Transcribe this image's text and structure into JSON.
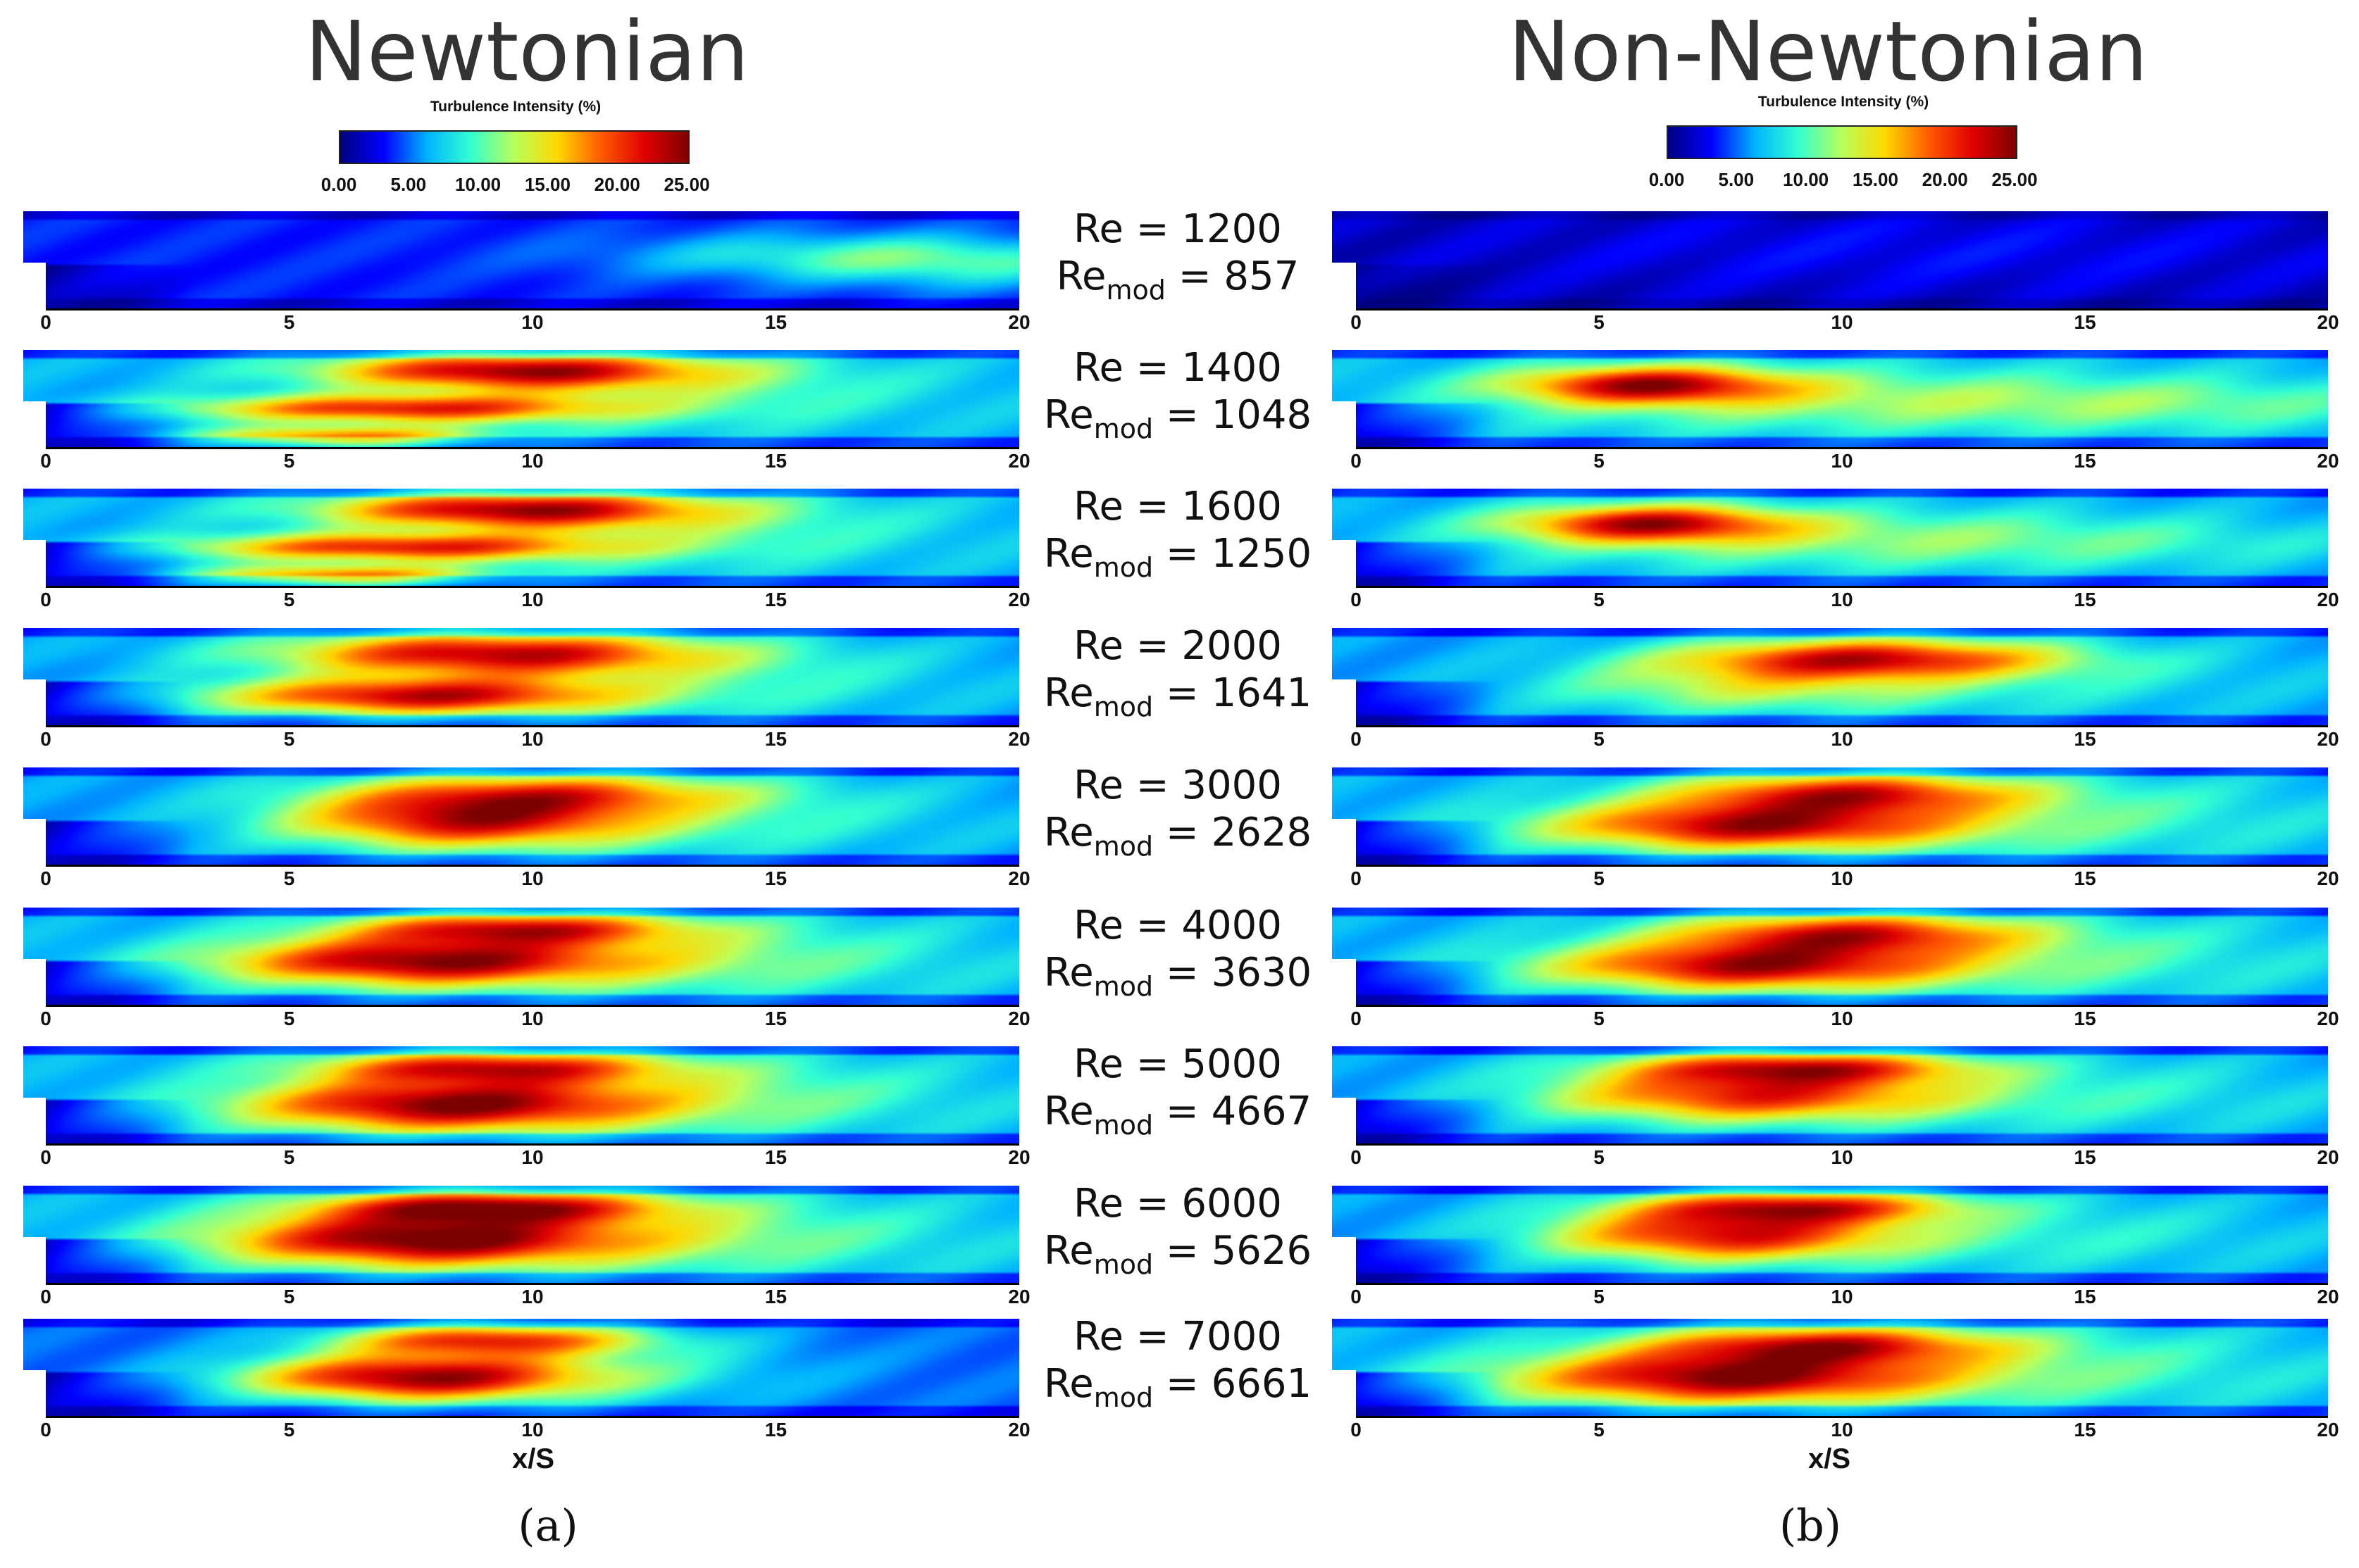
{
  "titles": {
    "left": "Newtonian",
    "right": "Non-Newtonian"
  },
  "colorbar": {
    "title": "Turbulence Intensity (%)",
    "ticks": [
      "0.00",
      "5.00",
      "10.00",
      "15.00",
      "20.00",
      "25.00"
    ],
    "colors": [
      "#00007f",
      "#0000ff",
      "#00b4ff",
      "#33ffd0",
      "#b8ff5a",
      "#ffd800",
      "#ff5a00",
      "#e00000",
      "#7f0000"
    ]
  },
  "axis": {
    "x_ticks": [
      "0",
      "5",
      "10",
      "15",
      "20"
    ],
    "xlabel": "x/S"
  },
  "cases": [
    {
      "re": "Re = 1200",
      "re_mod_prefix": "Re",
      "re_mod_sub": "mod",
      "re_mod_value": "= 857"
    },
    {
      "re": "Re = 1400",
      "re_mod_prefix": "Re",
      "re_mod_sub": "mod",
      "re_mod_value": "= 1048"
    },
    {
      "re": "Re = 1600",
      "re_mod_prefix": "Re",
      "re_mod_sub": "mod",
      "re_mod_value": "= 1250"
    },
    {
      "re": "Re = 2000",
      "re_mod_prefix": "Re",
      "re_mod_sub": "mod",
      "re_mod_value": "= 1641"
    },
    {
      "re": "Re = 3000",
      "re_mod_prefix": "Re",
      "re_mod_sub": "mod",
      "re_mod_value": "= 2628"
    },
    {
      "re": "Re = 4000",
      "re_mod_prefix": "Re",
      "re_mod_sub": "mod",
      "re_mod_value": "= 3630"
    },
    {
      "re": "Re = 5000",
      "re_mod_prefix": "Re",
      "re_mod_sub": "mod",
      "re_mod_value": "= 4667"
    },
    {
      "re": "Re = 6000",
      "re_mod_prefix": "Re",
      "re_mod_sub": "mod",
      "re_mod_value": "= 5626"
    },
    {
      "re": "Re = 7000",
      "re_mod_prefix": "Re",
      "re_mod_sub": "mod",
      "re_mod_value": "= 6661"
    }
  ],
  "panel_labels": {
    "left": "(a)",
    "right": "(b)"
  }
}
